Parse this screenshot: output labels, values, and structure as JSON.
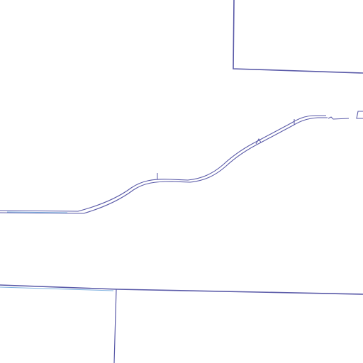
{
  "map": {
    "background_color": "#ffffff",
    "line_color": "#5a5aa8",
    "accent_color": "#7fb2e0",
    "features": [
      {
        "kind": "parcel-boundary",
        "name": "parcel-boundary-northeast"
      },
      {
        "kind": "parcel-boundary",
        "name": "parcel-boundary-south"
      },
      {
        "kind": "parcel-boundary",
        "name": "parcel-boundary-southwest-divider"
      },
      {
        "kind": "road",
        "name": "road-diagonal"
      },
      {
        "kind": "road-stub",
        "name": "road-stub-east"
      }
    ]
  }
}
